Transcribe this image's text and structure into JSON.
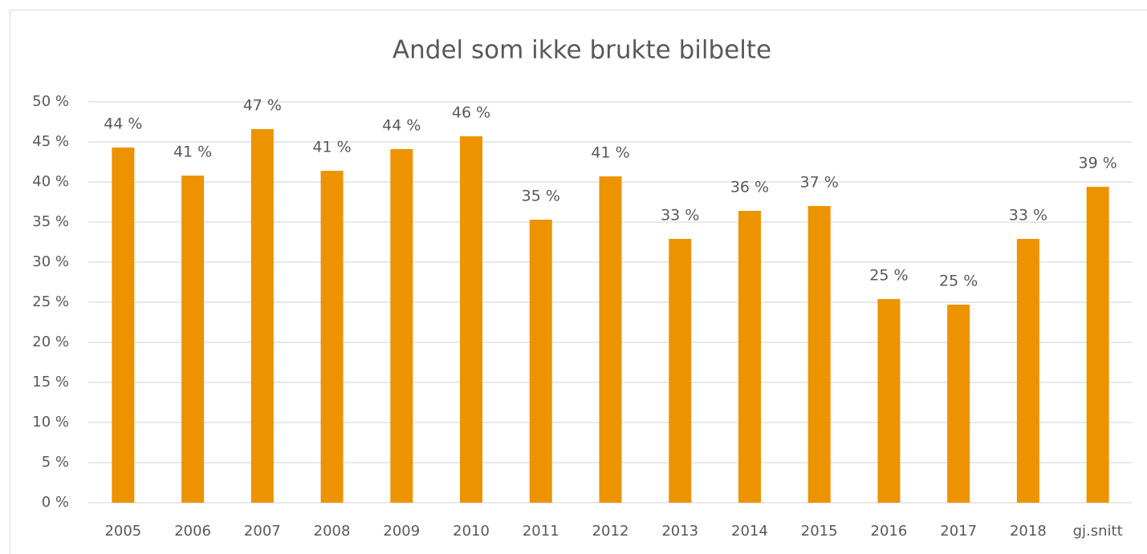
{
  "chart_data": {
    "type": "bar",
    "title": "Andel som ikke brukte bilbelte",
    "categories": [
      "2005",
      "2006",
      "2007",
      "2008",
      "2009",
      "2010",
      "2011",
      "2012",
      "2013",
      "2014",
      "2015",
      "2016",
      "2017",
      "2018",
      "gj.snitt"
    ],
    "values": [
      44.3,
      40.8,
      46.6,
      41.4,
      44.1,
      45.7,
      35.3,
      40.7,
      32.9,
      36.4,
      37.0,
      25.4,
      24.7,
      32.9,
      39.4
    ],
    "value_labels": [
      "44 %",
      "41 %",
      "47 %",
      "41 %",
      "44 %",
      "46 %",
      "35 %",
      "41 %",
      "33 %",
      "36 %",
      "37 %",
      "25 %",
      "25 %",
      "33 %",
      "39 %"
    ],
    "color": "#ed9300",
    "ylim": [
      0,
      50
    ],
    "yticks": [
      {
        "value": 0,
        "label": "0 %"
      },
      {
        "value": 5,
        "label": "5 %"
      },
      {
        "value": 10,
        "label": "10 %"
      },
      {
        "value": 15,
        "label": "15 %"
      },
      {
        "value": 20,
        "label": "20 %"
      },
      {
        "value": 25,
        "label": "25 %"
      },
      {
        "value": 30,
        "label": "30 %"
      },
      {
        "value": 35,
        "label": "35 %"
      },
      {
        "value": 40,
        "label": "40 %"
      },
      {
        "value": 45,
        "label": "45 %"
      },
      {
        "value": 50,
        "label": "50 %"
      }
    ],
    "grid": true
  }
}
